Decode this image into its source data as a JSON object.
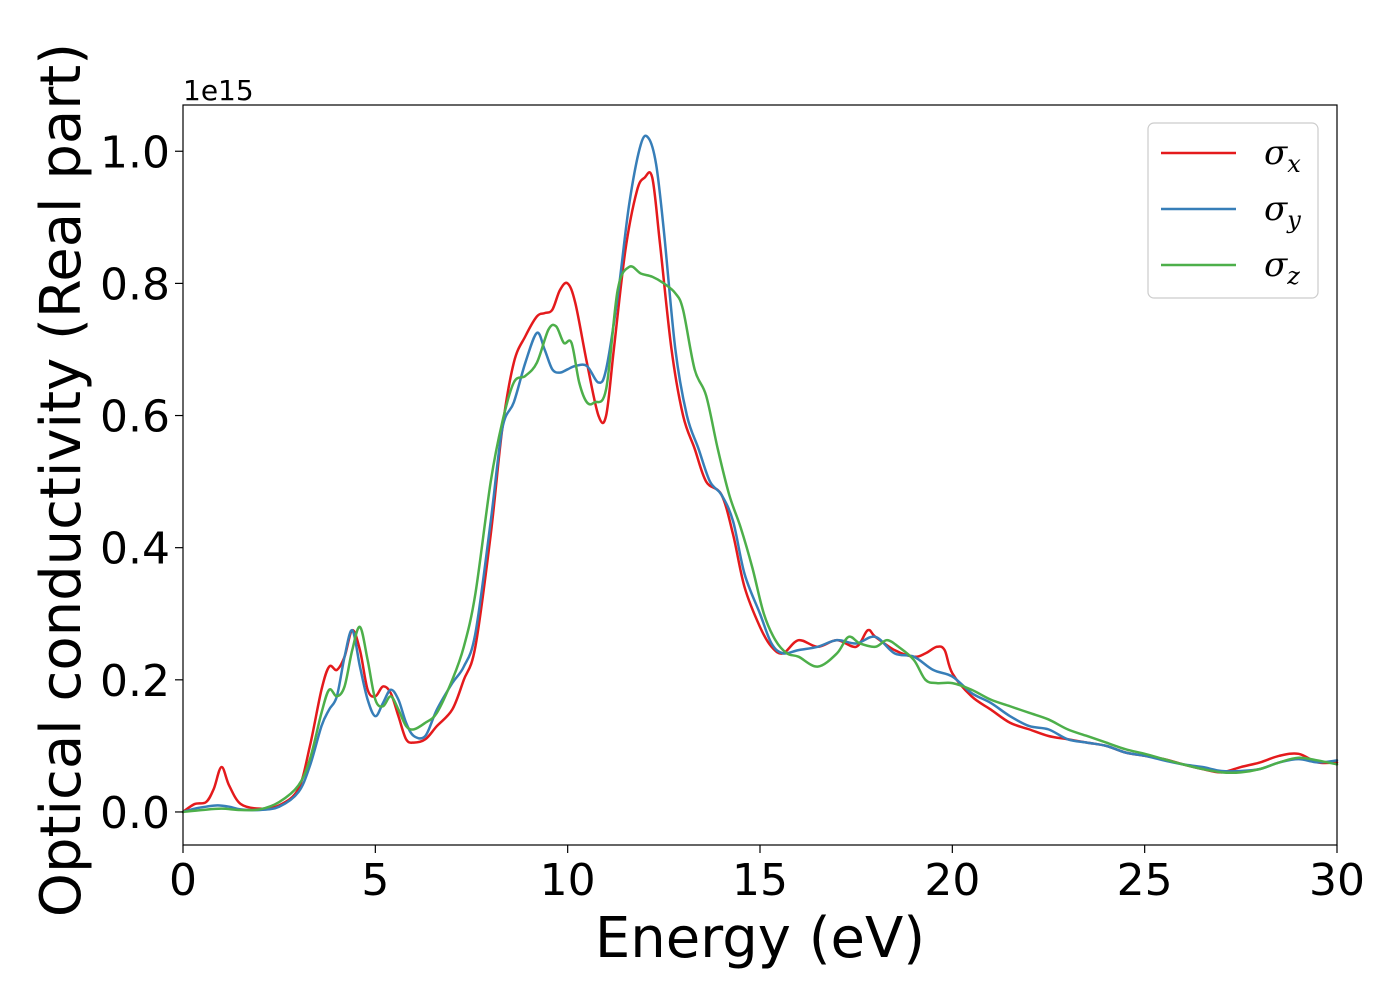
{
  "chart_data": {
    "type": "line",
    "xlabel": "Energy (eV)",
    "ylabel": "Optical conductivity (Real part)",
    "y_offset_label": "1e15",
    "xlim": [
      0,
      30
    ],
    "ylim": [
      -0.05,
      1.07
    ],
    "xticks": [
      0,
      5,
      10,
      15,
      20,
      25,
      30
    ],
    "xtick_labels": [
      "0",
      "5",
      "10",
      "15",
      "20",
      "25",
      "30"
    ],
    "yticks": [
      0.0,
      0.2,
      0.4,
      0.6,
      0.8,
      1.0
    ],
    "ytick_labels": [
      "0.0",
      "0.2",
      "0.4",
      "0.6",
      "0.8",
      "1.0"
    ],
    "grid": false,
    "legend_position": "top-right",
    "series": [
      {
        "name": "σx",
        "symbol": "σ",
        "subscript": "x",
        "color": "#e41a1c",
        "x": [
          0,
          0.3,
          0.6,
          0.8,
          1.0,
          1.2,
          1.5,
          2.0,
          2.5,
          3.0,
          3.3,
          3.6,
          3.8,
          4.0,
          4.2,
          4.4,
          4.6,
          4.8,
          5.0,
          5.2,
          5.4,
          5.6,
          5.8,
          6.0,
          6.3,
          6.6,
          7.0,
          7.3,
          7.6,
          8.0,
          8.3,
          8.6,
          8.9,
          9.2,
          9.4,
          9.6,
          9.8,
          10.0,
          10.2,
          10.5,
          10.8,
          11.0,
          11.2,
          11.5,
          11.8,
          12.0,
          12.2,
          12.4,
          12.7,
          13.0,
          13.3,
          13.6,
          14.0,
          14.3,
          14.6,
          15.0,
          15.3,
          15.6,
          16.0,
          16.5,
          17.0,
          17.5,
          17.8,
          18.0,
          18.5,
          19.0,
          19.3,
          19.6,
          19.8,
          20.0,
          20.5,
          21.0,
          21.5,
          22.0,
          22.5,
          23.0,
          23.5,
          24.0,
          24.5,
          25.0,
          25.5,
          26.0,
          26.5,
          27.0,
          27.5,
          28.0,
          28.5,
          29.0,
          29.5,
          30.0
        ],
        "values": [
          0.0,
          0.012,
          0.015,
          0.035,
          0.068,
          0.04,
          0.012,
          0.005,
          0.01,
          0.035,
          0.1,
          0.185,
          0.22,
          0.215,
          0.235,
          0.275,
          0.245,
          0.185,
          0.175,
          0.19,
          0.18,
          0.145,
          0.11,
          0.105,
          0.11,
          0.13,
          0.155,
          0.2,
          0.25,
          0.42,
          0.58,
          0.68,
          0.72,
          0.75,
          0.755,
          0.76,
          0.79,
          0.8,
          0.77,
          0.68,
          0.6,
          0.6,
          0.7,
          0.85,
          0.94,
          0.96,
          0.96,
          0.86,
          0.7,
          0.6,
          0.55,
          0.5,
          0.48,
          0.42,
          0.34,
          0.28,
          0.25,
          0.24,
          0.26,
          0.25,
          0.26,
          0.25,
          0.275,
          0.265,
          0.245,
          0.235,
          0.24,
          0.25,
          0.245,
          0.21,
          0.175,
          0.155,
          0.135,
          0.125,
          0.115,
          0.11,
          0.105,
          0.1,
          0.09,
          0.085,
          0.08,
          0.072,
          0.065,
          0.06,
          0.068,
          0.075,
          0.085,
          0.088,
          0.075,
          0.075
        ]
      },
      {
        "name": "σy",
        "symbol": "σ",
        "subscript": "y",
        "color": "#377eb8",
        "x": [
          0,
          0.3,
          0.6,
          0.9,
          1.2,
          1.5,
          2.0,
          2.5,
          3.0,
          3.3,
          3.6,
          3.8,
          4.0,
          4.2,
          4.4,
          4.6,
          4.8,
          5.0,
          5.2,
          5.4,
          5.6,
          5.8,
          6.0,
          6.3,
          6.6,
          7.0,
          7.3,
          7.6,
          8.0,
          8.3,
          8.6,
          8.9,
          9.2,
          9.4,
          9.6,
          9.8,
          10.0,
          10.2,
          10.5,
          10.8,
          11.0,
          11.3,
          11.6,
          11.9,
          12.1,
          12.3,
          12.5,
          12.8,
          13.1,
          13.4,
          13.7,
          14.0,
          14.3,
          14.6,
          15.0,
          15.3,
          15.6,
          16.0,
          16.5,
          17.0,
          17.5,
          18.0,
          18.5,
          19.0,
          19.5,
          20.0,
          20.5,
          21.0,
          21.5,
          22.0,
          22.5,
          23.0,
          23.5,
          24.0,
          24.5,
          25.0,
          25.5,
          26.0,
          26.5,
          27.0,
          27.5,
          28.0,
          28.5,
          29.0,
          29.5,
          30.0
        ],
        "values": [
          0.0,
          0.005,
          0.008,
          0.01,
          0.008,
          0.004,
          0.003,
          0.008,
          0.03,
          0.07,
          0.13,
          0.155,
          0.175,
          0.235,
          0.275,
          0.22,
          0.17,
          0.145,
          0.165,
          0.185,
          0.17,
          0.135,
          0.115,
          0.115,
          0.155,
          0.195,
          0.22,
          0.27,
          0.44,
          0.58,
          0.62,
          0.68,
          0.725,
          0.7,
          0.67,
          0.665,
          0.67,
          0.675,
          0.675,
          0.65,
          0.67,
          0.78,
          0.92,
          1.01,
          1.02,
          0.98,
          0.88,
          0.7,
          0.6,
          0.55,
          0.5,
          0.48,
          0.44,
          0.36,
          0.3,
          0.255,
          0.24,
          0.245,
          0.25,
          0.26,
          0.255,
          0.265,
          0.24,
          0.235,
          0.215,
          0.205,
          0.18,
          0.165,
          0.145,
          0.13,
          0.125,
          0.11,
          0.105,
          0.1,
          0.09,
          0.085,
          0.078,
          0.072,
          0.068,
          0.062,
          0.062,
          0.065,
          0.075,
          0.08,
          0.075,
          0.078
        ]
      },
      {
        "name": "σz",
        "symbol": "σ",
        "subscript": "z",
        "color": "#4daf4a",
        "x": [
          0,
          0.5,
          1.0,
          1.5,
          2.0,
          2.5,
          3.0,
          3.3,
          3.6,
          3.8,
          4.0,
          4.2,
          4.4,
          4.6,
          4.8,
          5.0,
          5.2,
          5.4,
          5.6,
          5.8,
          6.0,
          6.3,
          6.6,
          7.0,
          7.3,
          7.6,
          8.0,
          8.3,
          8.6,
          8.9,
          9.2,
          9.5,
          9.7,
          9.9,
          10.1,
          10.3,
          10.5,
          10.7,
          11.0,
          11.3,
          11.6,
          11.9,
          12.2,
          12.5,
          12.8,
          13.0,
          13.3,
          13.6,
          13.9,
          14.2,
          14.5,
          14.8,
          15.1,
          15.4,
          15.7,
          16.0,
          16.5,
          17.0,
          17.3,
          17.6,
          18.0,
          18.3,
          18.6,
          19.0,
          19.3,
          19.6,
          20.0,
          20.5,
          21.0,
          21.5,
          22.0,
          22.5,
          23.0,
          23.5,
          24.0,
          24.5,
          25.0,
          25.5,
          26.0,
          26.5,
          27.0,
          27.5,
          28.0,
          28.5,
          29.0,
          29.5,
          30.0
        ],
        "values": [
          0.0,
          0.003,
          0.005,
          0.003,
          0.004,
          0.015,
          0.04,
          0.08,
          0.15,
          0.185,
          0.175,
          0.19,
          0.245,
          0.28,
          0.23,
          0.17,
          0.16,
          0.175,
          0.155,
          0.13,
          0.125,
          0.135,
          0.15,
          0.2,
          0.25,
          0.33,
          0.5,
          0.59,
          0.65,
          0.66,
          0.68,
          0.73,
          0.735,
          0.71,
          0.71,
          0.65,
          0.62,
          0.62,
          0.64,
          0.79,
          0.825,
          0.815,
          0.81,
          0.8,
          0.785,
          0.76,
          0.67,
          0.63,
          0.55,
          0.48,
          0.43,
          0.37,
          0.3,
          0.26,
          0.24,
          0.235,
          0.22,
          0.24,
          0.265,
          0.255,
          0.25,
          0.26,
          0.25,
          0.23,
          0.2,
          0.195,
          0.195,
          0.185,
          0.17,
          0.16,
          0.15,
          0.14,
          0.125,
          0.115,
          0.105,
          0.095,
          0.088,
          0.08,
          0.072,
          0.065,
          0.06,
          0.06,
          0.065,
          0.075,
          0.082,
          0.078,
          0.072
        ]
      }
    ]
  }
}
